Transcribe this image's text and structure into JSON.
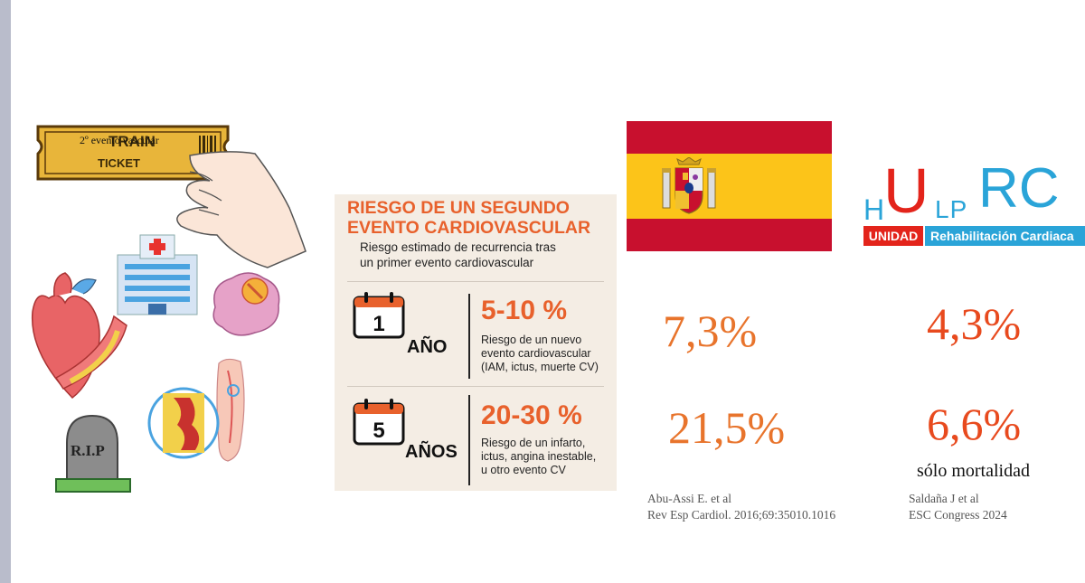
{
  "ticket": {
    "line1": "TRAIN",
    "line2": "TICKET",
    "overlay_text": "2º evento vascular"
  },
  "tombstone_text": "R.I.P",
  "infographic": {
    "title_line1": "RIESGO DE UN SEGUNDO",
    "title_line2": "EVENTO CARDIOVASCULAR",
    "subtitle_line1": "Riesgo estimado de recurrencia tras",
    "subtitle_line2": "un primer evento cardiovascular",
    "rows": [
      {
        "calendar_number": "1",
        "period": "AÑO",
        "percent": "5-10 %",
        "desc_lines": [
          "Riesgo de un nuevo",
          "evento cardiovascular",
          "(IAM, ictus, muerte CV)"
        ]
      },
      {
        "calendar_number": "5",
        "period": "AÑOS",
        "percent": "20-30 %",
        "desc_lines": [
          "Riesgo de un infarto,",
          "ictus, angina inestable,",
          "u otro evento CV"
        ]
      }
    ]
  },
  "logo": {
    "h": "H",
    "u": "U",
    "lp": "LP",
    "rc": "RC",
    "unidad": "UNIDAD",
    "rehab": "Rehabilitación Cardiaca"
  },
  "spain": {
    "stat1": "7,3%",
    "stat2": "21,5%",
    "ref_line1": "Abu-Assi E. et al",
    "ref_line2": "Rev Esp Cardiol. 2016;69:35010.1016"
  },
  "hulp": {
    "stat1": "4,3%",
    "stat2": "6,6%",
    "note": "sólo mortalidad",
    "ref_line1": "Saldaña J et al",
    "ref_line2": "ESC Congress 2024"
  },
  "colors": {
    "accent_orange": "#e8612c",
    "flag_red": "#c8102e",
    "flag_yellow": "#fcc419",
    "logo_red": "#e3241b",
    "logo_blue": "#2aa4d8"
  }
}
